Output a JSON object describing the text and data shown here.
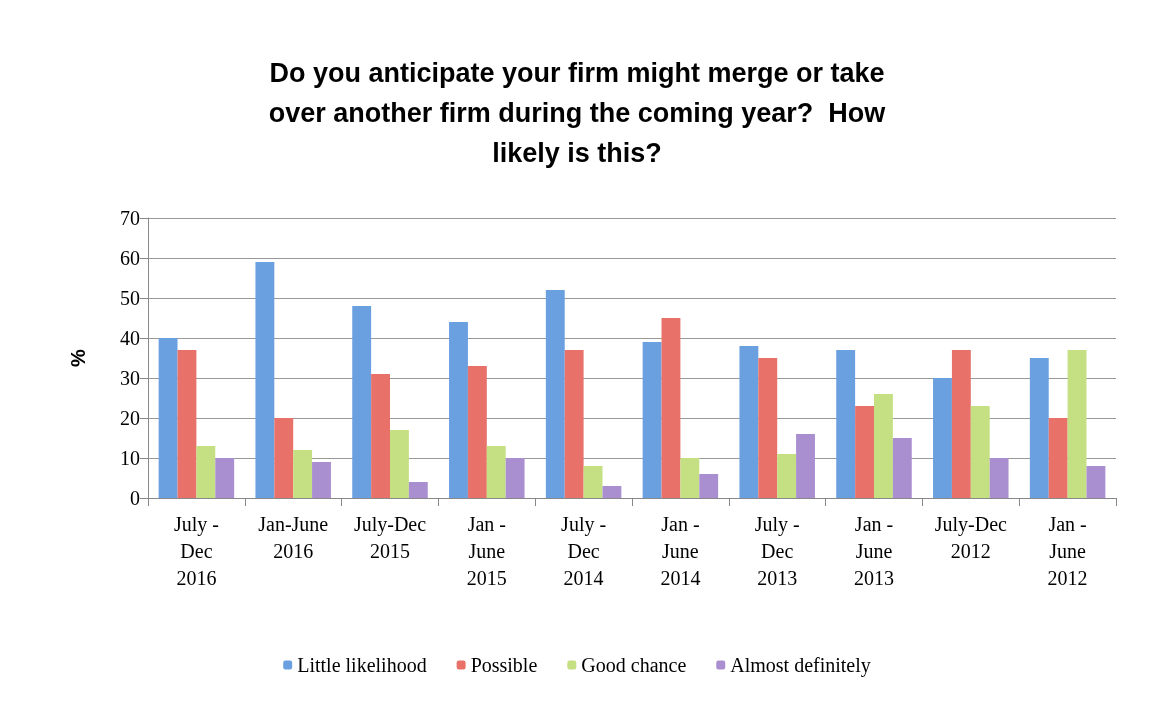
{
  "chart_data": {
    "type": "bar",
    "title": "Do you anticipate your firm might merge or take\nover another firm during the coming year?  How\nlikely is this?",
    "ylabel": "%",
    "categories": [
      "July -\nDec\n2016",
      "Jan-June\n2016",
      "July-Dec\n2015",
      "Jan -\nJune\n2015",
      "July -\nDec\n2014",
      "Jan -\nJune\n2014",
      "July -\nDec\n2013",
      "Jan -\nJune\n2013",
      "July-Dec\n2012",
      "Jan -\nJune\n2012"
    ],
    "series": [
      {
        "name": "Little likelihood",
        "color": "#6a9fe0",
        "values": [
          40,
          59,
          48,
          44,
          52,
          39,
          38,
          37,
          30,
          35
        ]
      },
      {
        "name": "Possible",
        "color": "#e8716a",
        "values": [
          37,
          20,
          31,
          33,
          37,
          45,
          35,
          23,
          37,
          20
        ]
      },
      {
        "name": "Good chance",
        "color": "#c4e082",
        "values": [
          13,
          12,
          17,
          13,
          8,
          10,
          11,
          26,
          23,
          37
        ]
      },
      {
        "name": "Almost definitely",
        "color": "#a98fd0",
        "values": [
          10,
          9,
          4,
          10,
          3,
          6,
          16,
          15,
          10,
          8
        ]
      }
    ],
    "ylim": [
      0,
      70
    ],
    "yticks": [
      0,
      10,
      20,
      30,
      40,
      50,
      60,
      70
    ],
    "grid": "y",
    "legend": "bottom"
  }
}
